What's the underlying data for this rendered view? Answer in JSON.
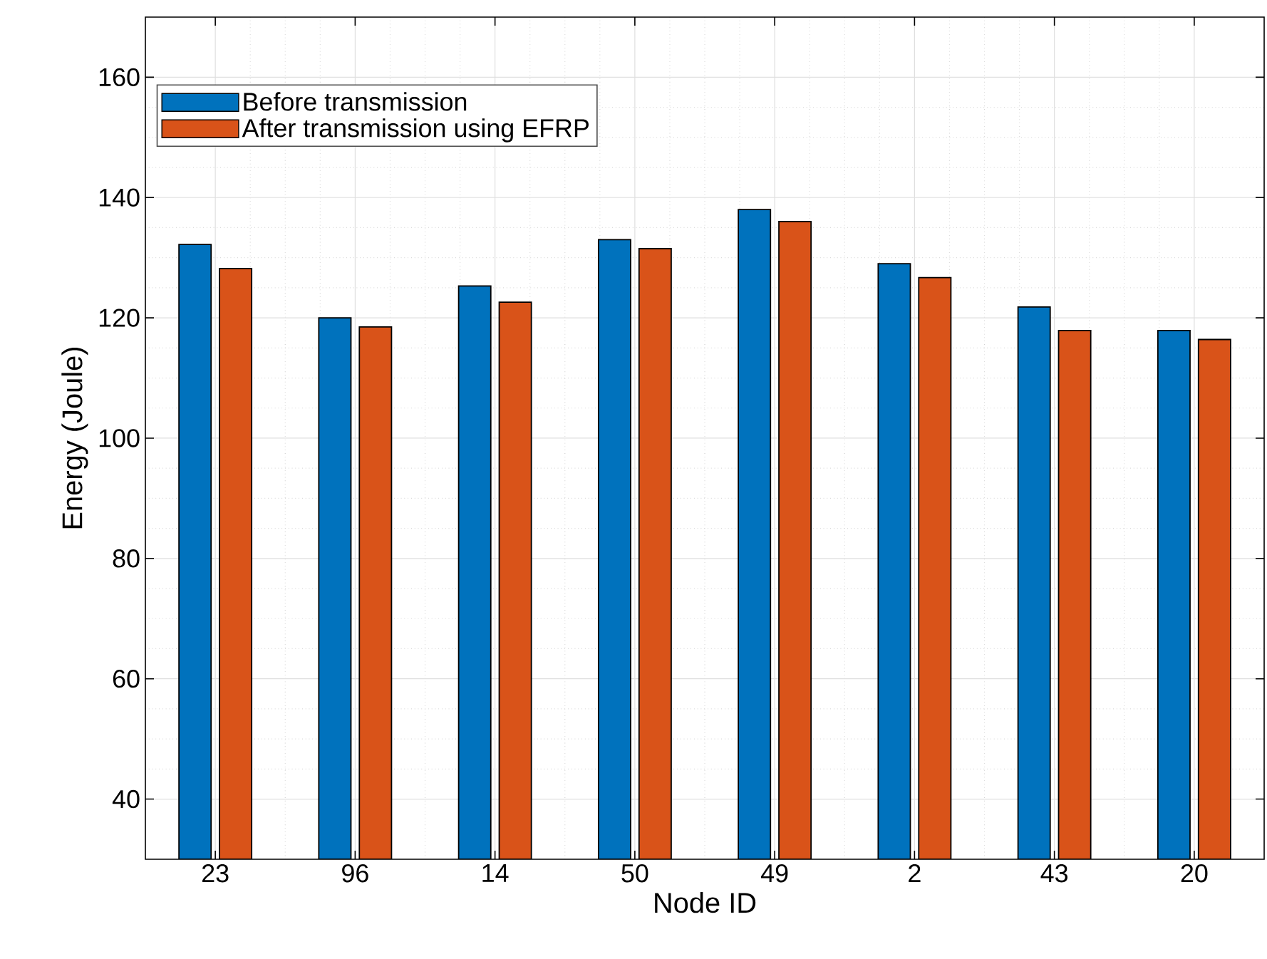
{
  "chart_data": {
    "type": "bar",
    "xlabel": "Node ID",
    "ylabel": "Energy (Joule)",
    "categories": [
      "23",
      "96",
      "14",
      "50",
      "49",
      "2",
      "43",
      "20"
    ],
    "series": [
      {
        "name": "Before transmission",
        "color": "#0072bd",
        "values": [
          132.2,
          120,
          125.3,
          133,
          138,
          129,
          121.8,
          117.9
        ]
      },
      {
        "name": "After transmission using EFRP",
        "color": "#d95319",
        "values": [
          128.2,
          118.5,
          122.6,
          131.5,
          136,
          126.7,
          117.9,
          116.4
        ]
      }
    ],
    "ylim": [
      30,
      170
    ],
    "yticks": [
      40,
      60,
      80,
      100,
      120,
      140,
      160
    ],
    "grid": true,
    "legend": "top left"
  }
}
